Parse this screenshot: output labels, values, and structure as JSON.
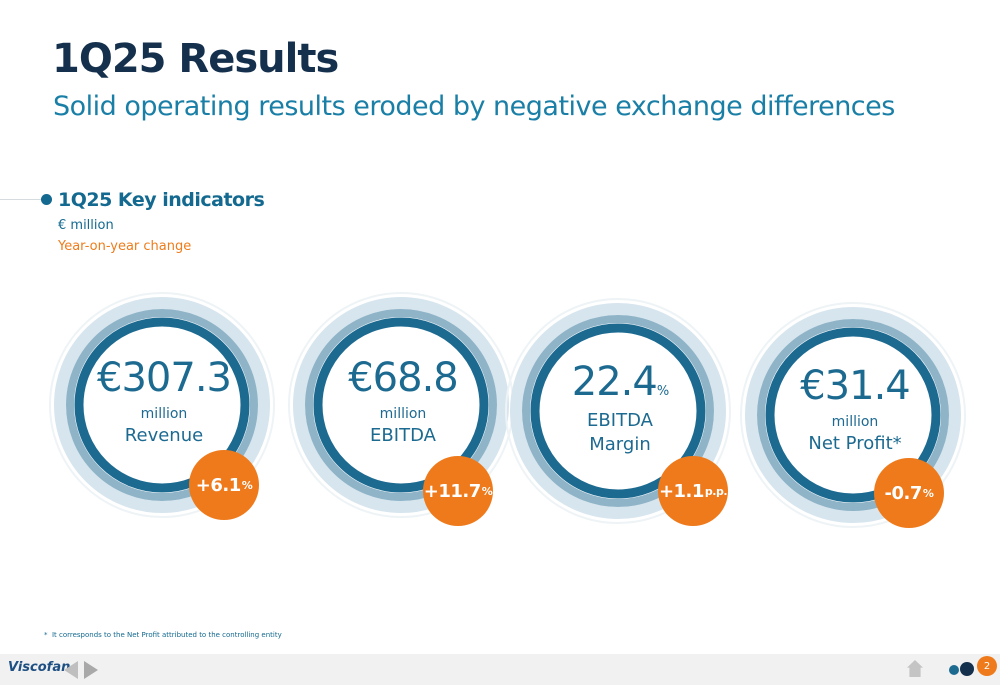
{
  "title": "1Q25 Results",
  "subtitle": "Solid operating results eroded by negative exchange differences",
  "section": {
    "title": "1Q25 Key indicators",
    "unit": "€ million",
    "yoy_label": "Year-on-year change"
  },
  "kpis": [
    {
      "value": "€307.3",
      "value_suffix": "",
      "line1": "million",
      "line2": "Revenue",
      "change": "+6.1",
      "change_suffix": "%"
    },
    {
      "value": "€68.8",
      "value_suffix": "",
      "line1": "million",
      "line2": "EBITDA",
      "change": "+11.7",
      "change_suffix": "%"
    },
    {
      "value": "22.4",
      "value_suffix": "%",
      "line1": "EBITDA",
      "line2": "Margin",
      "change": "+1.1",
      "change_suffix": "p.p."
    },
    {
      "value": "€31.4",
      "value_suffix": "",
      "line1": "million",
      "line2": "Net Profit*",
      "change": "-0.7",
      "change_suffix": "%"
    }
  ],
  "footnote": {
    "mark": "*",
    "text": "It corresponds to the Net Profit attributed to the controlling entity"
  },
  "footer": {
    "logo": "Viscofan",
    "page_number": "2",
    "prev_icon": "arrow-left-icon",
    "next_icon": "arrow-right-icon",
    "home_icon": "home-icon"
  },
  "colors": {
    "navy": "#15304d",
    "blue": "#1d6a91",
    "accent_orange": "#ee7a1b",
    "ring_dark": "#1d6a91",
    "ring_mid": "#8fb4c8",
    "ring_light": "#d7e5ee"
  }
}
